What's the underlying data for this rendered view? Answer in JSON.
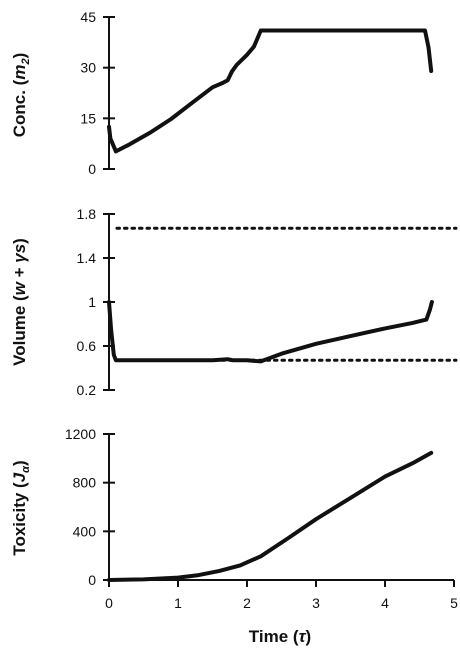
{
  "chart_data": [
    {
      "type": "line",
      "id": "conc",
      "xlabel": "",
      "ylabel_parts": [
        "Conc. (",
        "m",
        "2",
        ")"
      ],
      "xlim": [
        0,
        5
      ],
      "ylim": [
        0,
        45
      ],
      "yticks": [
        0,
        15,
        30,
        45
      ],
      "ytick_labels": [
        "0",
        "15",
        "30",
        "45"
      ],
      "grid": false,
      "series": [
        {
          "x": [
            0.0,
            0.02,
            0.1,
            0.3,
            0.6,
            0.9,
            1.2,
            1.5,
            1.65,
            1.72,
            1.78,
            1.85,
            2.0,
            2.1,
            2.2,
            2.5,
            3.0,
            3.5,
            4.0,
            4.4,
            4.58,
            4.63,
            4.67
          ],
          "y": [
            12.5,
            9.0,
            5.2,
            7.3,
            10.8,
            14.8,
            19.5,
            24.2,
            25.5,
            26.3,
            28.8,
            30.8,
            33.8,
            36.2,
            41.0,
            41.0,
            41.0,
            41.0,
            41.0,
            41.0,
            41.0,
            36.0,
            29.0
          ]
        }
      ]
    },
    {
      "type": "line",
      "id": "volume",
      "xlabel": "",
      "ylabel_parts": [
        "Volume (",
        "w",
        " + ",
        "γs",
        ")"
      ],
      "xlim": [
        0,
        5
      ],
      "ylim": [
        0.2,
        1.8
      ],
      "yticks": [
        0.2,
        0.6,
        1.0,
        1.4,
        1.8
      ],
      "ytick_labels": [
        "0.2",
        "0.6",
        "1",
        "1.4",
        "1.8"
      ],
      "grid": false,
      "reference_lines": [
        1.67,
        0.47
      ],
      "series": [
        {
          "x": [
            0.0,
            0.03,
            0.07,
            0.1,
            0.5,
            1.0,
            1.5,
            1.72,
            1.8,
            2.0,
            2.2,
            2.5,
            3.0,
            3.5,
            4.0,
            4.4,
            4.6,
            4.65,
            4.68
          ],
          "y": [
            1.0,
            0.75,
            0.52,
            0.47,
            0.47,
            0.47,
            0.47,
            0.48,
            0.47,
            0.47,
            0.46,
            0.53,
            0.62,
            0.69,
            0.76,
            0.81,
            0.84,
            0.93,
            1.0
          ]
        }
      ]
    },
    {
      "type": "line",
      "id": "toxicity",
      "xlabel_parts": [
        "Time (",
        "τ",
        ")"
      ],
      "ylabel_parts": [
        "Toxicity (",
        "J",
        "α",
        ")"
      ],
      "xlim": [
        0,
        5
      ],
      "ylim": [
        0,
        1200
      ],
      "xticks": [
        0,
        1,
        2,
        3,
        4,
        5
      ],
      "xtick_labels": [
        "0",
        "1",
        "2",
        "3",
        "4",
        "5"
      ],
      "yticks": [
        0,
        400,
        800,
        1200
      ],
      "ytick_labels": [
        "0",
        "400",
        "800",
        "1200"
      ],
      "grid": false,
      "series": [
        {
          "x": [
            0.0,
            0.5,
            1.0,
            1.3,
            1.6,
            1.9,
            2.2,
            2.6,
            3.0,
            3.5,
            4.0,
            4.4,
            4.67
          ],
          "y": [
            0,
            5,
            20,
            40,
            75,
            120,
            195,
            345,
            500,
            675,
            850,
            960,
            1045
          ]
        }
      ]
    }
  ]
}
